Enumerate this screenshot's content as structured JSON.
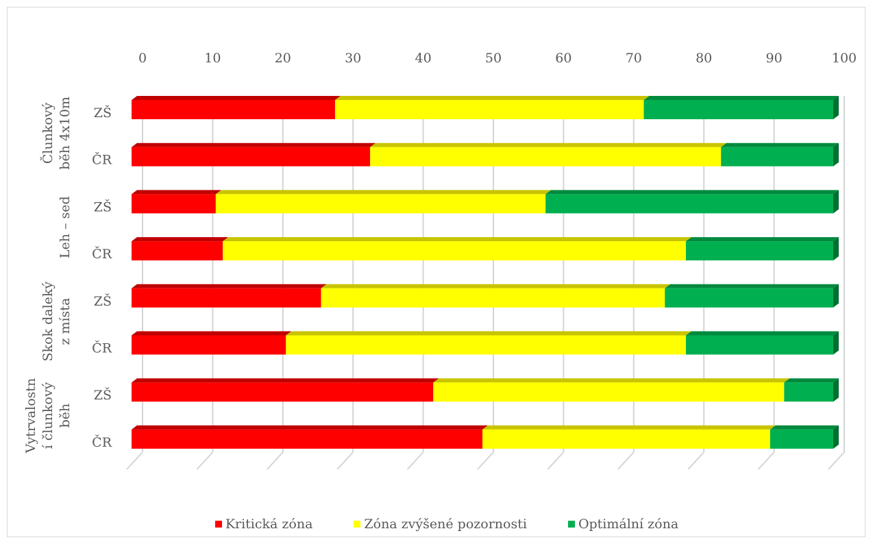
{
  "chart_data": {
    "type": "bar",
    "horizontal": true,
    "stacked": true,
    "three_d": true,
    "x_axis": {
      "min": 0,
      "max": 100,
      "ticks": [
        0,
        10,
        20,
        30,
        40,
        50,
        60,
        70,
        80,
        90,
        100
      ],
      "position": "top"
    },
    "groups": [
      {
        "label_lines": [
          "Člunkový",
          "běh 4x10m"
        ],
        "categories": [
          "ZŠ",
          "ČR"
        ]
      },
      {
        "label_lines": [
          "Leh – sed"
        ],
        "categories": [
          "ZŠ",
          "ČR"
        ]
      },
      {
        "label_lines": [
          "Skok daleký",
          "z místa"
        ],
        "categories": [
          "ZŠ",
          "ČR"
        ]
      },
      {
        "label_lines": [
          "Vytrvalostn",
          "í člunkový",
          "běh"
        ],
        "categories": [
          "ZŠ",
          "ČR"
        ]
      }
    ],
    "series": [
      {
        "name": "Kritická zóna",
        "color": "#ff0000",
        "top_color": "#c00000",
        "side_color": "#a00000",
        "values": [
          29,
          34,
          12,
          13,
          27,
          22,
          43,
          50
        ]
      },
      {
        "name": "Zóna zvýšené pozornosti",
        "color": "#ffff00",
        "top_color": "#c8c400",
        "side_color": "#a6a300",
        "values": [
          44,
          50,
          47,
          66,
          49,
          57,
          50,
          41
        ]
      },
      {
        "name": "Optimální zóna",
        "color": "#00b050",
        "top_color": "#008a3e",
        "side_color": "#006f31",
        "values": [
          27,
          16,
          41,
          21,
          24,
          21,
          7,
          9
        ]
      }
    ],
    "grid": true,
    "legend": "bottom"
  }
}
